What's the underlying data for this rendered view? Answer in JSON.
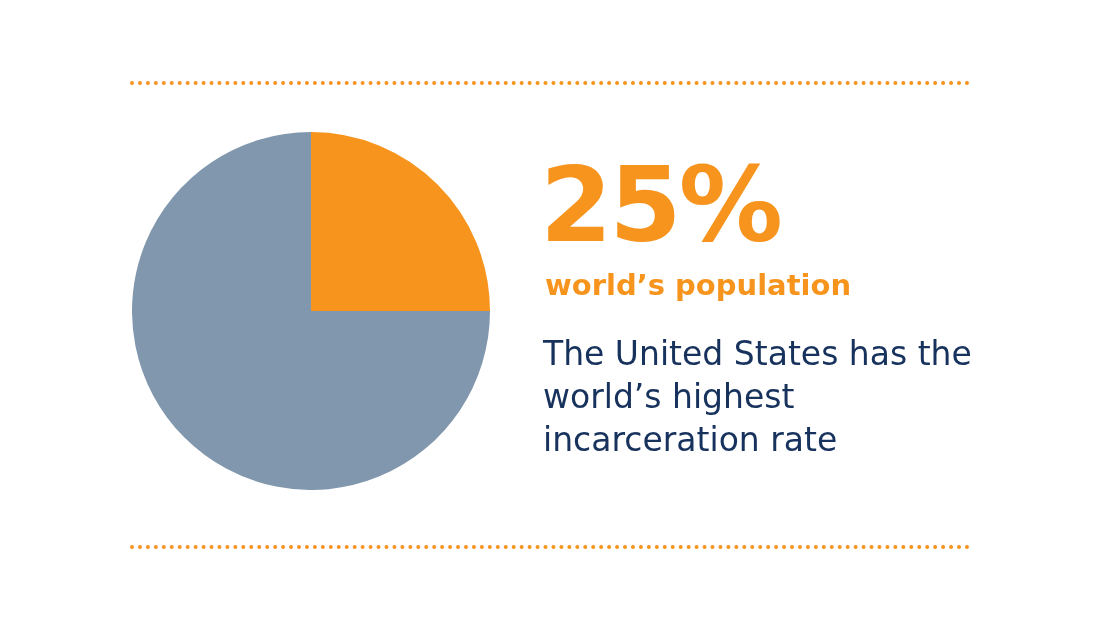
{
  "chart_data": {
    "type": "pie",
    "categories": [
      null,
      null
    ],
    "values": [
      25,
      75
    ],
    "colors": [
      "#f7941d",
      "#8197ae"
    ],
    "value_labels": [
      "25%",
      null
    ],
    "legend": false,
    "annotations": [
      "world’s population",
      "The United States has the world’s highest incarceration rate"
    ]
  }
}
